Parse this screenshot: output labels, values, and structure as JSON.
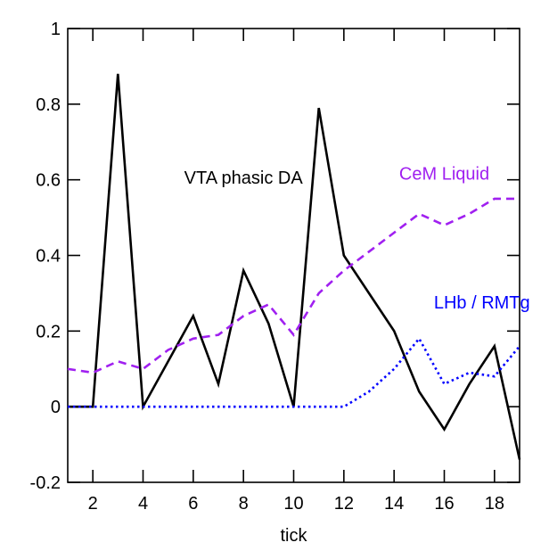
{
  "chart_data": {
    "type": "line",
    "xlabel": "tick",
    "ylabel": "",
    "xlim": [
      1,
      19
    ],
    "ylim": [
      -0.2,
      1.0
    ],
    "grid": false,
    "x_ticks": [
      2,
      4,
      6,
      8,
      10,
      12,
      14,
      16,
      18
    ],
    "y_ticks": [
      -0.2,
      0,
      0.2,
      0.4,
      0.6,
      0.8,
      1
    ],
    "y_tick_labels": [
      "-0.2",
      "0",
      "0.2",
      "0.4",
      "0.6",
      "0.8",
      "1"
    ],
    "x": [
      1,
      2,
      3,
      4,
      5,
      6,
      7,
      8,
      9,
      10,
      11,
      12,
      13,
      14,
      15,
      16,
      17,
      18,
      19
    ],
    "series": [
      {
        "name": "VTA phasic DA",
        "color": "#000000",
        "style": "solid",
        "values": [
          0,
          0,
          0.88,
          0,
          0.12,
          0.24,
          0.06,
          0.36,
          0.22,
          0,
          0.79,
          0.4,
          0.3,
          0.2,
          0.04,
          -0.06,
          0.06,
          0.16,
          -0.14
        ]
      },
      {
        "name": "CeM Liquid",
        "color": "#a020f0",
        "style": "dashed",
        "values": [
          0.1,
          0.09,
          0.12,
          0.1,
          0.15,
          0.18,
          0.19,
          0.24,
          0.27,
          0.19,
          0.3,
          0.36,
          0.41,
          0.46,
          0.51,
          0.48,
          0.51,
          0.55,
          0.55
        ]
      },
      {
        "name": "LHb / RMTg",
        "color": "#0000ff",
        "style": "dotted",
        "values": [
          0,
          0,
          0,
          0,
          0,
          0,
          0,
          0,
          0,
          0,
          0,
          0,
          0.04,
          0.1,
          0.18,
          0.06,
          0.09,
          0.08,
          0.16
        ]
      }
    ],
    "annotations": [
      {
        "text": "VTA phasic DA",
        "x": 8,
        "y": 0.59,
        "color": "#000000"
      },
      {
        "text": "CeM Liquid",
        "x": 16,
        "y": 0.6,
        "color": "#a020f0"
      },
      {
        "text": "LHb / RMTg",
        "x": 17.5,
        "y": 0.26,
        "color": "#0000ff"
      }
    ]
  }
}
